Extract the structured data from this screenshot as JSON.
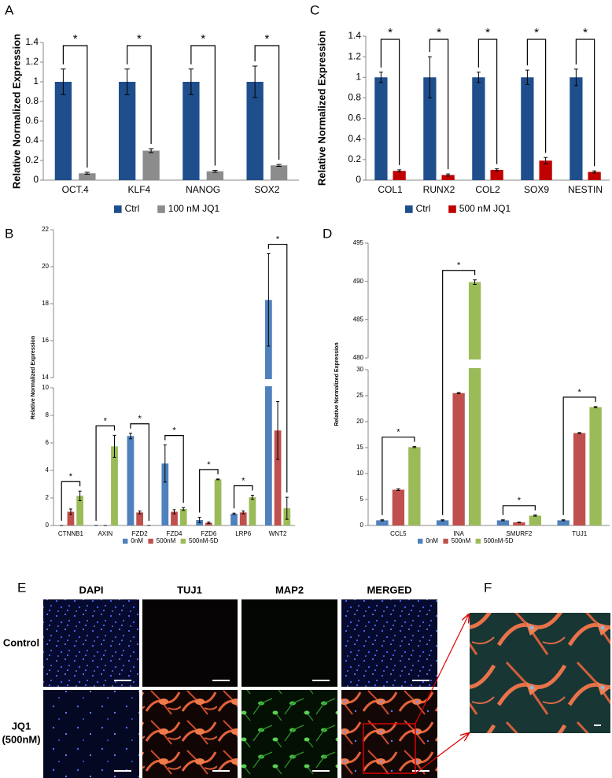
{
  "chart_data": [
    {
      "type": "bar",
      "panel_label": "A",
      "y_label": "Relative Normalized Expression",
      "categories": [
        "OCT.4",
        "KLF4",
        "NANOG",
        "SOX2"
      ],
      "series": [
        {
          "name": "Ctrl",
          "color": "#1f4e8c",
          "values": [
            1,
            1,
            1,
            1
          ],
          "errors": [
            0.13,
            0.13,
            0.13,
            0.16
          ]
        },
        {
          "name": "100 nM JQ1",
          "color": "#8c8c8c",
          "values": [
            0.07,
            0.3,
            0.09,
            0.15
          ],
          "errors": [
            0.01,
            0.02,
            0.01,
            0.01
          ]
        }
      ],
      "ylim": [
        0,
        1.4
      ],
      "yticks": [
        0,
        0.2,
        0.4,
        0.6,
        0.8,
        1,
        1.2,
        1.4
      ],
      "significance": [
        "*",
        "*",
        "*",
        "*"
      ],
      "legend": "bottom"
    },
    {
      "type": "bar",
      "panel_label": "C",
      "y_label": "Relative Normalized Expression",
      "categories": [
        "COL1",
        "RUNX2",
        "COL2",
        "SOX9",
        "NESTIN"
      ],
      "series": [
        {
          "name": "Ctrl",
          "color": "#1f4e8c",
          "values": [
            1,
            1,
            1,
            1,
            1
          ],
          "errors": [
            0.05,
            0.2,
            0.05,
            0.07,
            0.08
          ]
        },
        {
          "name": "500 nM JQ1",
          "color": "#c00000",
          "values": [
            0.09,
            0.05,
            0.1,
            0.19,
            0.08
          ],
          "errors": [
            0.01,
            0.01,
            0.01,
            0.03,
            0.01
          ]
        }
      ],
      "ylim": [
        0,
        1.4
      ],
      "yticks": [
        0,
        0.2,
        0.4,
        0.6,
        0.8,
        1,
        1.2,
        1.4
      ],
      "significance": [
        "*",
        "*",
        "*",
        "*",
        "*"
      ],
      "legend": "bottom"
    },
    {
      "type": "bar",
      "panel_label": "B",
      "y_label": "Relative Normalized Expression",
      "categories": [
        "CTNNB1",
        "AXIN",
        "FZD2",
        "FZD4",
        "FZD6",
        "LRP6",
        "WNT2"
      ],
      "series": [
        {
          "name": "0nM",
          "color": "#4f81bd",
          "values": [
            0,
            0,
            6.5,
            4.5,
            0.4,
            0.85,
            18.2
          ],
          "errors": [
            0,
            0,
            0.2,
            1.35,
            0.2,
            0.05,
            2.5
          ]
        },
        {
          "name": "500nM",
          "color": "#c0504d",
          "values": [
            1,
            0,
            0.95,
            1,
            0.2,
            0.95,
            6.9
          ],
          "errors": [
            0.2,
            0,
            0.1,
            0.15,
            0.05,
            0.1,
            2.1
          ]
        },
        {
          "name": "500nM-5D",
          "color": "#9bbb59",
          "values": [
            2.15,
            5.75,
            0,
            1.2,
            3.35,
            2.05,
            1.25
          ],
          "errors": [
            0.35,
            0.8,
            0,
            0.1,
            0.03,
            0.15,
            0.8
          ]
        }
      ],
      "ylim": [
        0,
        22
      ],
      "yticks": [
        0,
        2,
        4,
        6,
        8,
        10,
        14,
        16,
        18,
        20,
        22
      ],
      "axis_break": [
        10,
        14
      ],
      "significance": [
        "*",
        "*",
        "*",
        "*",
        "*",
        "*",
        "*"
      ],
      "legend": "bottom"
    },
    {
      "type": "bar",
      "panel_label": "D",
      "y_label": "Relative Normalized Expression",
      "categories": [
        "CCL5",
        "INA",
        "SMURF2",
        "TUJ1"
      ],
      "series": [
        {
          "name": "0nM",
          "color": "#4f81bd",
          "values": [
            1,
            1,
            1,
            1
          ],
          "errors": [
            0.1,
            0.1,
            0.1,
            0.1
          ]
        },
        {
          "name": "500nM",
          "color": "#c0504d",
          "values": [
            6.9,
            25.5,
            0.6,
            17.8
          ],
          "errors": [
            0.15,
            0.1,
            0.05,
            0.1
          ]
        },
        {
          "name": "500nM-5D",
          "color": "#9bbb59",
          "values": [
            15.1,
            489.9,
            1.9,
            22.8
          ],
          "errors": [
            0.1,
            0.3,
            0.1,
            0.1
          ]
        }
      ],
      "ylim": [
        0,
        495
      ],
      "yticks": [
        0,
        5,
        10,
        15,
        20,
        25,
        30,
        480,
        485,
        490,
        495
      ],
      "axis_break": [
        30,
        480
      ],
      "significance": [
        "*",
        "*",
        "*",
        "*"
      ],
      "legend": "bottom"
    }
  ],
  "micrographs": {
    "panel_label": "E",
    "columns": [
      "DAPI",
      "TUJ1",
      "MAP2",
      "MERGED"
    ],
    "rows": [
      [
        "Control"
      ],
      [
        "JQ1",
        "(500nM)"
      ]
    ]
  },
  "zoom": {
    "panel_label": "F"
  }
}
